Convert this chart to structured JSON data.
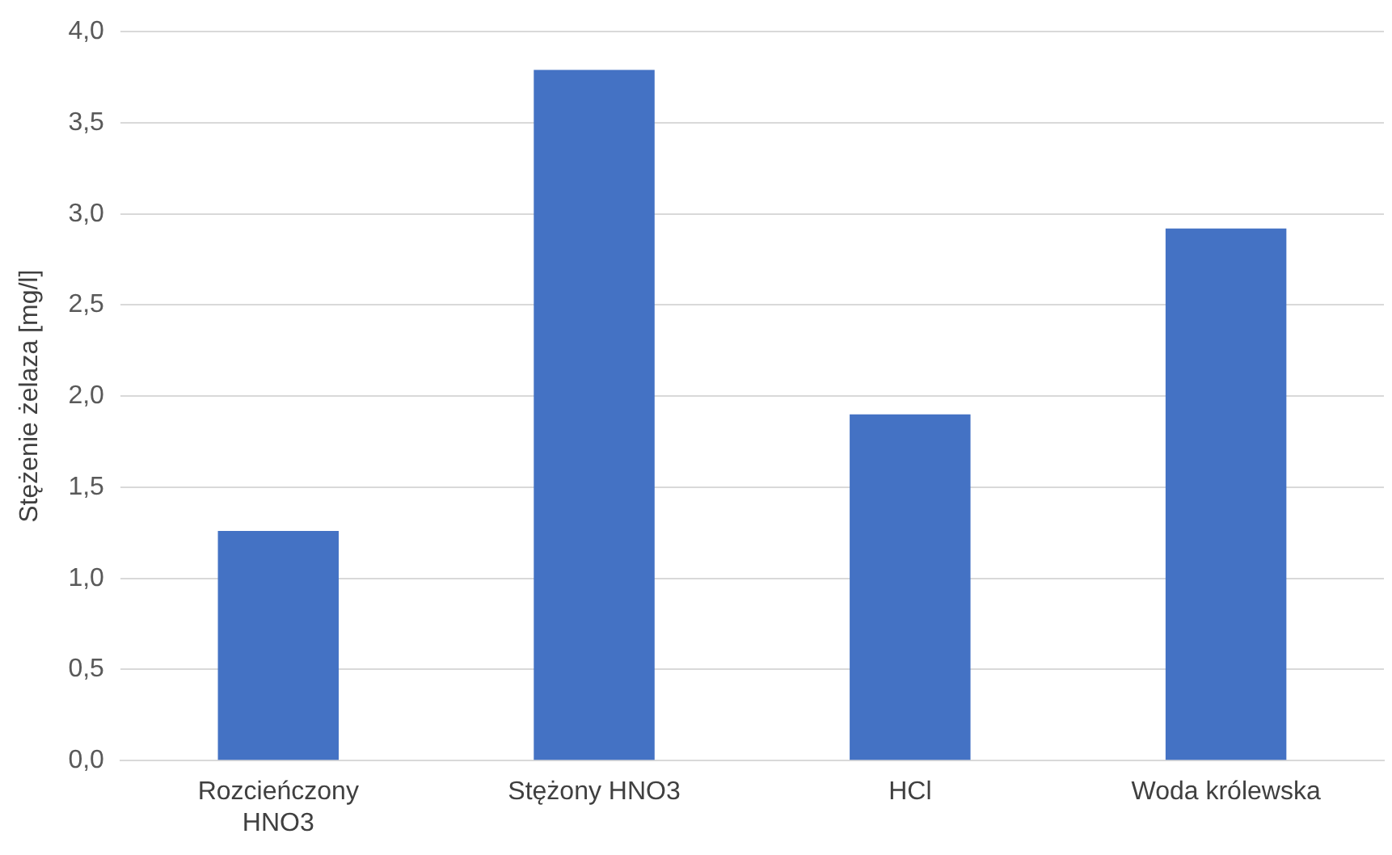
{
  "chart_data": {
    "type": "bar",
    "ylabel": "Stężenie żelaza [mg/l]",
    "categories": [
      "Rozcieńczony HNO3",
      "Stężony HNO3",
      "HCl",
      "Woda królewska"
    ],
    "values": [
      1.26,
      3.79,
      1.9,
      2.92
    ],
    "color": "#4472c4",
    "ylim": [
      0,
      4
    ],
    "yticks": [
      {
        "value": 0,
        "label": "0,0"
      },
      {
        "value": 0.5,
        "label": "0,5"
      },
      {
        "value": 1,
        "label": "1,0"
      },
      {
        "value": 1.5,
        "label": "1,5"
      },
      {
        "value": 2,
        "label": "2,0"
      },
      {
        "value": 2.5,
        "label": "2,5"
      },
      {
        "value": 3,
        "label": "3,0"
      },
      {
        "value": 3.5,
        "label": "3,5"
      },
      {
        "value": 4,
        "label": "4,0"
      }
    ],
    "grid": "y",
    "legend": false
  }
}
